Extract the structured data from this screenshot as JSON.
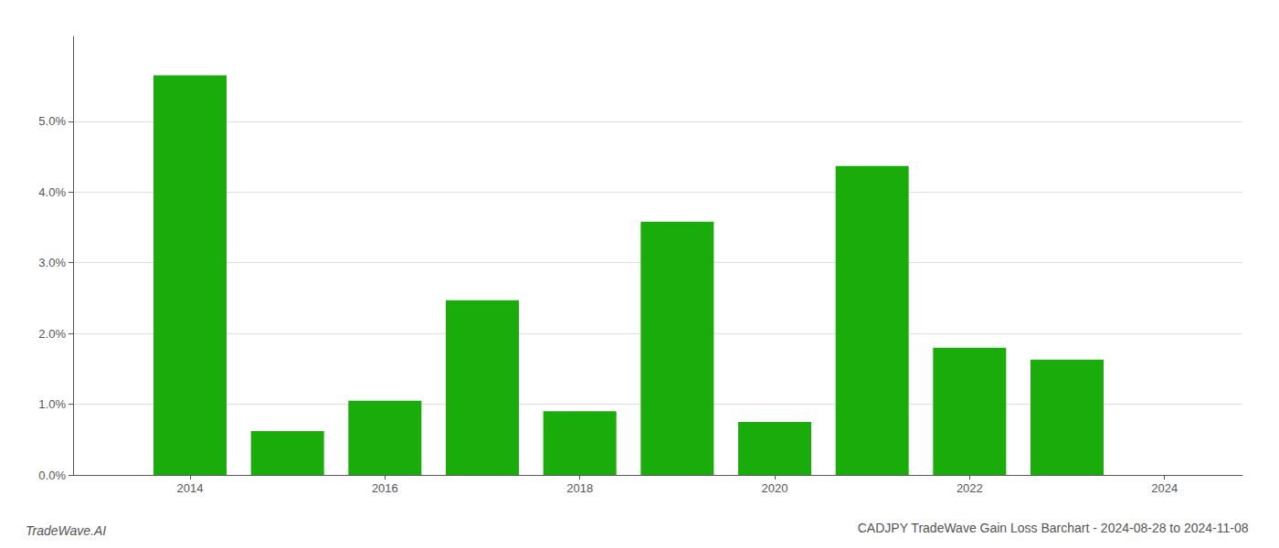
{
  "chart_data": {
    "type": "bar",
    "title": "CADJPY TradeWave Gain Loss Barchart - 2024-08-28 to 2024-11-08",
    "annotations": [
      {
        "text": "TradeWave.AI"
      }
    ],
    "x": [
      2014,
      2015,
      2016,
      2017,
      2018,
      2019,
      2020,
      2021,
      2022,
      2023
    ],
    "values": [
      0.0565,
      0.0062,
      0.0105,
      0.0247,
      0.009,
      0.0358,
      0.0075,
      0.0437,
      0.018,
      0.0163
    ],
    "color": "#1aac0a",
    "xlim": [
      2012.8,
      2024.8
    ],
    "xticks": [
      2014,
      2016,
      2018,
      2020,
      2022,
      2024
    ],
    "ylim": [
      0,
      0.062
    ],
    "yticks": [
      {
        "value": 0.0,
        "label": "0.0%"
      },
      {
        "value": 0.01,
        "label": "1.0%"
      },
      {
        "value": 0.02,
        "label": "2.0%"
      },
      {
        "value": 0.03,
        "label": "3.0%"
      },
      {
        "value": 0.04,
        "label": "4.0%"
      },
      {
        "value": 0.05,
        "label": "5.0%"
      }
    ],
    "grid": true
  }
}
